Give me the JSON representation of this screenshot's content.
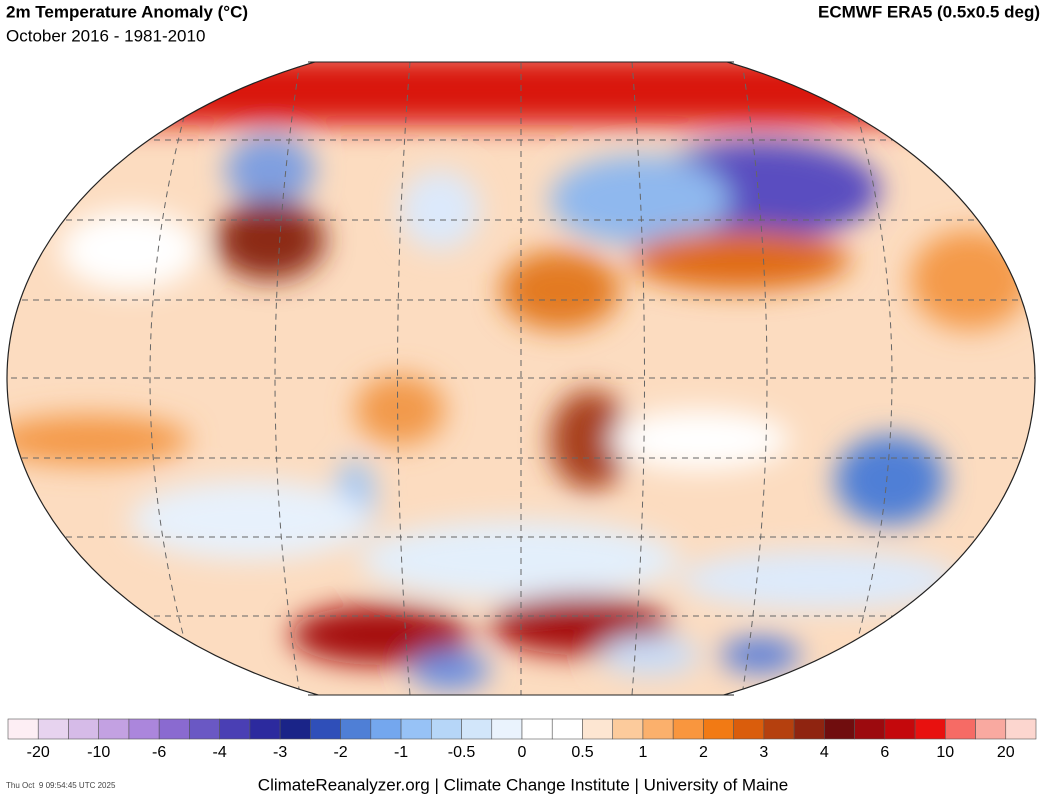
{
  "header": {
    "title": "2m Temperature Anomaly (°C)",
    "subtitle": "October 2016 - 1981-2010",
    "source": "ECMWF ERA5 (0.5x0.5 deg)"
  },
  "colorbar": {
    "colors": [
      "#fdeef4",
      "#e7d3ef",
      "#d6bbe8",
      "#c3a1e2",
      "#ab86dc",
      "#8a6ad0",
      "#6a58c4",
      "#4a3fb4",
      "#2c2a9e",
      "#1a2488",
      "#2f4fb9",
      "#4f7fd6",
      "#74a7ee",
      "#97c2f6",
      "#b6d6f8",
      "#d2e6fa",
      "#eaf3fd",
      "#ffffff",
      "#ffffff",
      "#fde6d2",
      "#fccb9c",
      "#fbb06c",
      "#f9963e",
      "#f27a14",
      "#da5d0c",
      "#b5400e",
      "#8f2410",
      "#700d0e",
      "#9c0a0e",
      "#c4080c",
      "#e8110f",
      "#f66b65",
      "#f9a9a0",
      "#fcd6cf"
    ],
    "labels": [
      -20,
      -10,
      -6,
      -4,
      -3,
      -2,
      -1,
      -0.5,
      0,
      0.5,
      1,
      2,
      3,
      4,
      6,
      10,
      20
    ]
  },
  "footer": {
    "credit": "ClimateReanalyzer.org | Climate Change Institute | University of Maine",
    "timestamp": "Thu Oct  9 09:54:45 UTC 2025"
  }
}
